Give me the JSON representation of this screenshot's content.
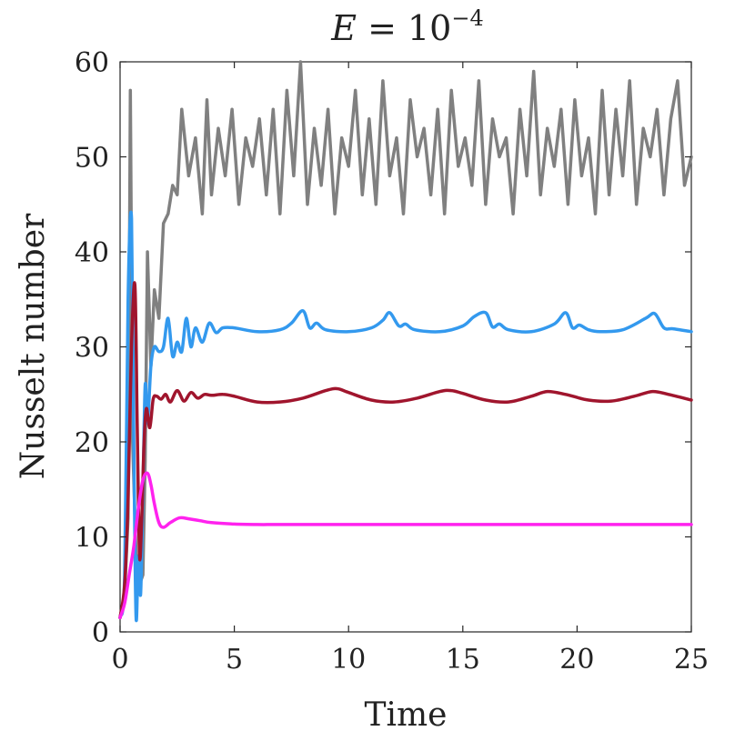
{
  "chart_data": {
    "type": "line",
    "title": "E = 10^{-4}",
    "title_parts": {
      "lhs": "E",
      "eq": " = ",
      "base": "10",
      "exponent": "−4"
    },
    "xlabel": "Time",
    "ylabel": "Nusselt number",
    "xlim": [
      0,
      25
    ],
    "ylim": [
      0,
      60
    ],
    "xticks": [
      "0",
      "5",
      "10",
      "15",
      "20",
      "25"
    ],
    "yticks": [
      "0",
      "10",
      "20",
      "30",
      "40",
      "50",
      "60"
    ],
    "grid": false,
    "legend": "none",
    "series": [
      {
        "name": "gray",
        "color": "#808080",
        "behavior": "chaotic",
        "x": [
          0,
          0.2,
          0.35,
          0.45,
          0.55,
          0.7,
          0.85,
          1.0,
          1.1,
          1.2,
          1.35,
          1.5,
          1.7,
          1.9,
          2.1,
          2.3,
          2.5,
          2.7,
          3.0,
          3.3,
          3.6,
          3.8,
          4.0,
          4.3,
          4.6,
          4.9,
          5.2,
          5.5,
          5.8,
          6.1,
          6.4,
          6.7,
          7.0,
          7.3,
          7.6,
          7.9,
          8.2,
          8.5,
          8.8,
          9.1,
          9.4,
          9.7,
          10.0,
          10.3,
          10.6,
          10.9,
          11.2,
          11.5,
          11.8,
          12.1,
          12.4,
          12.7,
          13.0,
          13.3,
          13.6,
          13.9,
          14.2,
          14.5,
          14.8,
          15.1,
          15.4,
          15.7,
          16.0,
          16.3,
          16.6,
          16.9,
          17.2,
          17.5,
          17.8,
          18.1,
          18.4,
          18.7,
          19.0,
          19.3,
          19.6,
          19.9,
          20.2,
          20.5,
          20.8,
          21.1,
          21.4,
          21.7,
          22.0,
          22.3,
          22.6,
          22.9,
          23.2,
          23.5,
          23.8,
          24.1,
          24.4,
          24.7,
          25.0
        ],
        "values": [
          1.5,
          4,
          12,
          57,
          20,
          8,
          5,
          6,
          18,
          40,
          28,
          36,
          33,
          43,
          44,
          47,
          46,
          55,
          48,
          52,
          44,
          56,
          46,
          53,
          48,
          55,
          45,
          52,
          49,
          54,
          46,
          55,
          44,
          57,
          48,
          60,
          45,
          53,
          47,
          55,
          44,
          52,
          49,
          57,
          46,
          54,
          45,
          58,
          48,
          52,
          44,
          56,
          50,
          53,
          46,
          55,
          44,
          57,
          49,
          52,
          47,
          58,
          45,
          54,
          50,
          52,
          44,
          55,
          48,
          59,
          46,
          53,
          49,
          55,
          45,
          56,
          48,
          52,
          44,
          57,
          46,
          55,
          48,
          58,
          45,
          53,
          50,
          55,
          46,
          54,
          58,
          47,
          50
        ]
      },
      {
        "name": "blue",
        "color": "#3399ee",
        "behavior": "periodic",
        "x": [
          0,
          0.2,
          0.35,
          0.5,
          0.6,
          0.7,
          0.8,
          0.9,
          1.0,
          1.1,
          1.2,
          1.35,
          1.5,
          1.7,
          1.9,
          2.1,
          2.3,
          2.5,
          2.7,
          2.9,
          3.1,
          3.3,
          3.6,
          3.9,
          4.2,
          4.5,
          5.0,
          6.0,
          7.0,
          7.5,
          8.0,
          8.3,
          8.6,
          9.0,
          10.0,
          11.0,
          11.5,
          11.8,
          12.2,
          12.5,
          12.9,
          14.0,
          15.0,
          15.5,
          16.0,
          16.3,
          16.6,
          17.0,
          18.0,
          19.0,
          19.5,
          19.8,
          20.1,
          20.5,
          21.0,
          22.0,
          23.0,
          23.4,
          23.8,
          24.2,
          25.0
        ],
        "values": [
          1.5,
          6,
          35,
          43.5,
          20,
          1.5,
          8,
          4,
          15,
          26,
          22,
          28,
          30,
          29.5,
          30,
          33,
          29,
          30.5,
          29.5,
          33,
          30,
          32,
          30.5,
          32.5,
          31.5,
          32,
          32,
          31.6,
          31.8,
          32.5,
          33.8,
          32,
          32.5,
          31.8,
          31.6,
          32,
          32.8,
          33.6,
          32.2,
          32.4,
          31.8,
          31.6,
          32.2,
          33.2,
          33.6,
          32.1,
          32.4,
          31.8,
          31.6,
          32.4,
          33.6,
          32.0,
          32.3,
          31.8,
          31.6,
          31.8,
          33.0,
          33.5,
          32.0,
          31.9,
          31.6
        ]
      },
      {
        "name": "dark-red",
        "color": "#a0152d",
        "behavior": "periodic",
        "x": [
          0,
          0.2,
          0.35,
          0.5,
          0.65,
          0.75,
          0.85,
          0.95,
          1.05,
          1.15,
          1.3,
          1.45,
          1.6,
          1.8,
          2.0,
          2.2,
          2.5,
          2.8,
          3.1,
          3.4,
          3.7,
          4.0,
          4.5,
          5.0,
          6.0,
          7.0,
          8.0,
          9.0,
          9.5,
          10.0,
          11.0,
          12.0,
          13.0,
          14.0,
          14.5,
          15.0,
          16.0,
          17.0,
          18.0,
          18.7,
          19.5,
          20.5,
          21.5,
          22.5,
          23.3,
          24.0,
          25.0
        ],
        "values": [
          1.5,
          5,
          14,
          30,
          36.5,
          22,
          8,
          12,
          20,
          23.5,
          21.5,
          24.5,
          24.8,
          24.5,
          25,
          24.2,
          25.4,
          24.3,
          25.2,
          24.6,
          25,
          24.9,
          25,
          24.8,
          24.2,
          24.2,
          24.6,
          25.4,
          25.6,
          25.2,
          24.4,
          24.2,
          24.6,
          25.3,
          25.4,
          25.1,
          24.4,
          24.2,
          24.8,
          25.3,
          25.0,
          24.4,
          24.3,
          24.8,
          25.3,
          25.0,
          24.4
        ]
      },
      {
        "name": "magenta",
        "color": "#ff22ee",
        "behavior": "steady",
        "x": [
          0,
          0.2,
          0.4,
          0.6,
          0.8,
          1.0,
          1.2,
          1.35,
          1.5,
          1.7,
          1.9,
          2.2,
          2.6,
          3.0,
          3.5,
          4.0,
          5.0,
          6.0,
          7.0,
          10.0,
          15.0,
          20.0,
          25.0
        ],
        "values": [
          1.5,
          3,
          6,
          9,
          13,
          16,
          16.7,
          15.5,
          13.5,
          11.5,
          11,
          11.5,
          12,
          11.9,
          11.7,
          11.5,
          11.35,
          11.3,
          11.3,
          11.3,
          11.3,
          11.3,
          11.3
        ]
      }
    ]
  }
}
